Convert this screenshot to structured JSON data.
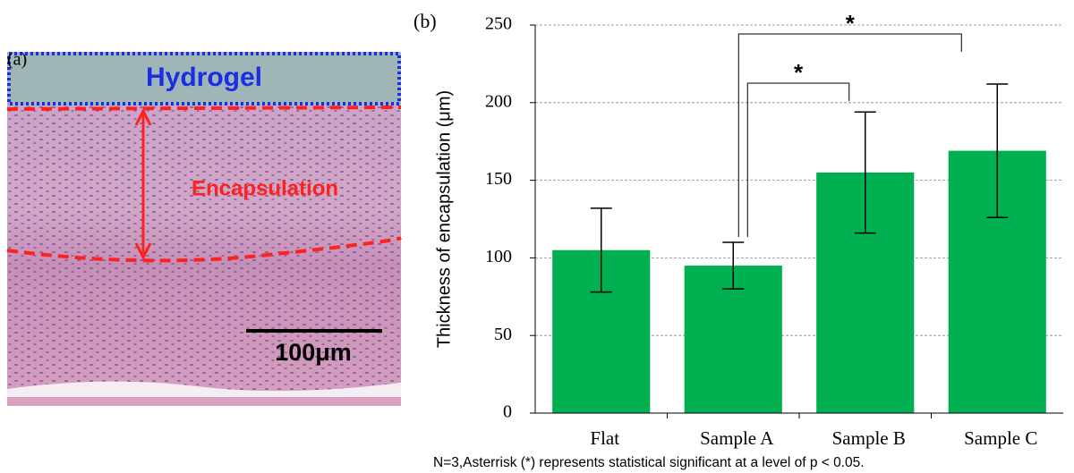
{
  "panel_a": {
    "label": "(a)",
    "hydrogel_label": "Hydrogel",
    "encapsulation_label": "Encapsulation",
    "scale_bar": "100μm"
  },
  "chart_data": {
    "type": "bar",
    "panel_label": "(b)",
    "y_label": "Thickness of encapsulation (μm)",
    "categories": [
      "Flat",
      "Sample A",
      "Sample B",
      "Sample C"
    ],
    "values": [
      105,
      95,
      155,
      169
    ],
    "errors": [
      27,
      15,
      39,
      43
    ],
    "color": "#00b050",
    "ylim": [
      0,
      250
    ],
    "yticks": [
      0,
      50,
      100,
      150,
      200,
      250
    ],
    "grid": true,
    "annotations": [
      {
        "text": "*",
        "between": [
          "Sample A",
          "Sample B"
        ]
      },
      {
        "text": "*",
        "between": [
          "Sample A",
          "Sample C"
        ]
      }
    ],
    "footnote": "N=3,Asterrisk (*) represents statistical significant at a level of p < 0.05."
  }
}
